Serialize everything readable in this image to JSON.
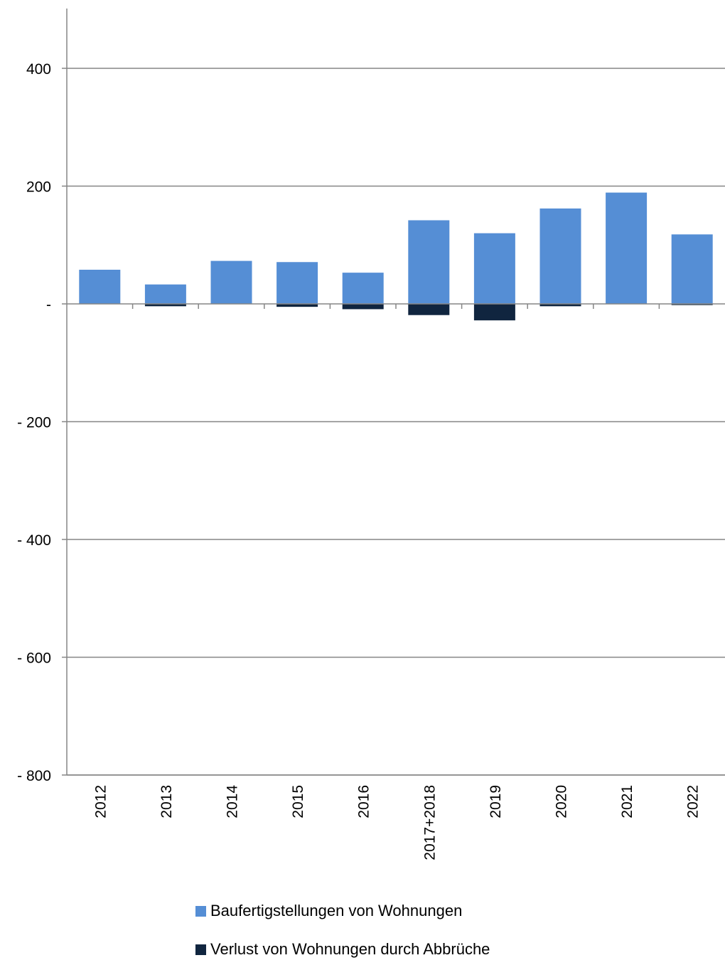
{
  "chart_data": {
    "type": "bar",
    "stacked": true,
    "categories": [
      "2012",
      "2013",
      "2014",
      "2015",
      "2016",
      "2017+2018",
      "2019",
      "2020",
      "2021",
      "2022"
    ],
    "series": [
      {
        "name": "Baufertigstellungen von Wohnungen",
        "color": "#558ed5",
        "values": [
          58,
          33,
          73,
          71,
          53,
          142,
          120,
          162,
          189,
          118
        ]
      },
      {
        "name": "Verlust von Wohnungen durch Abbrüche",
        "color": "#10253f",
        "values": [
          0,
          -4,
          0,
          -5,
          -9,
          -19,
          -28,
          -4,
          0,
          -2
        ]
      }
    ],
    "ylim": [
      -800,
      500
    ],
    "yticks": [
      400,
      200,
      0,
      -200,
      -400,
      -600,
      -800
    ],
    "ytick_labels": [
      "400",
      "200",
      "-",
      "- 200",
      "- 400",
      "- 600",
      "- 800"
    ],
    "xlabel": "",
    "ylabel": "",
    "title": "",
    "grid": true,
    "legend_position": "bottom"
  }
}
